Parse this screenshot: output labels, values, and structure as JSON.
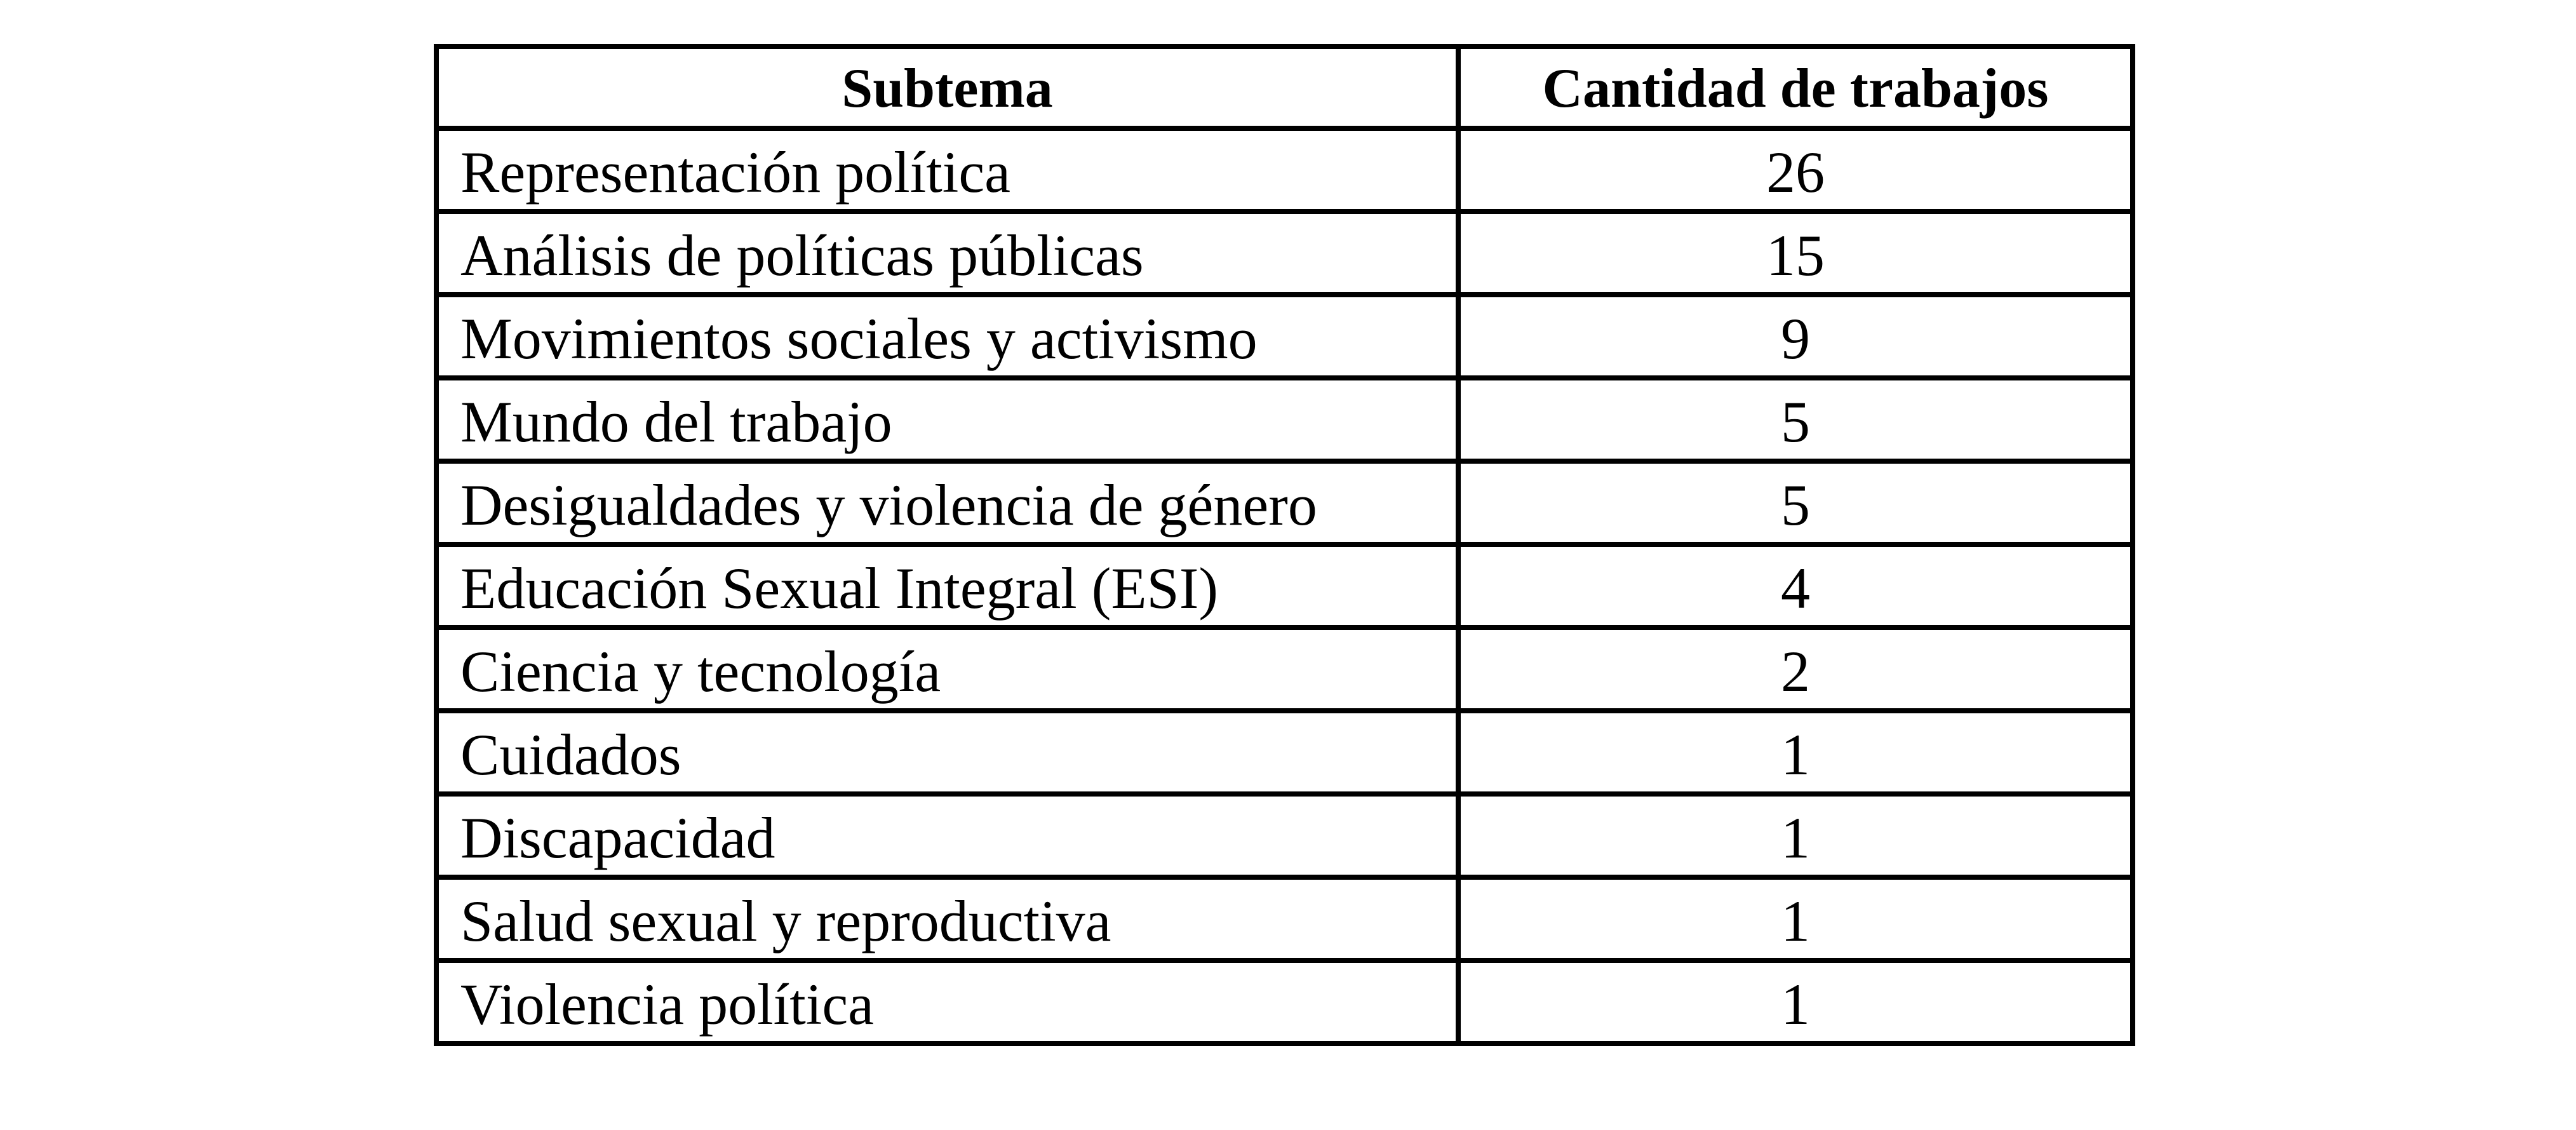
{
  "table": {
    "headers": {
      "subtema": "Subtema",
      "cantidad": "Cantidad de trabajos"
    },
    "rows": [
      {
        "subtema": "Representación política",
        "cantidad": "26"
      },
      {
        "subtema": "Análisis de políticas públicas",
        "cantidad": "15"
      },
      {
        "subtema": "Movimientos sociales y activismo",
        "cantidad": "9"
      },
      {
        "subtema": "Mundo del trabajo",
        "cantidad": "5"
      },
      {
        "subtema": "Desigualdades y violencia de género",
        "cantidad": "5"
      },
      {
        "subtema": "Educación Sexual Integral (ESI)",
        "cantidad": "4"
      },
      {
        "subtema": "Ciencia y tecnología",
        "cantidad": "2"
      },
      {
        "subtema": "Cuidados",
        "cantidad": "1"
      },
      {
        "subtema": "Discapacidad",
        "cantidad": "1"
      },
      {
        "subtema": "Salud sexual y reproductiva",
        "cantidad": "1"
      },
      {
        "subtema": "Violencia política",
        "cantidad": "1"
      }
    ]
  },
  "chart_data": {
    "type": "table",
    "columns": [
      "Subtema",
      "Cantidad de trabajos"
    ],
    "categories": [
      "Representación política",
      "Análisis de políticas públicas",
      "Movimientos sociales y activismo",
      "Mundo del trabajo",
      "Desigualdades y violencia de género",
      "Educación Sexual Integral (ESI)",
      "Ciencia y tecnología",
      "Cuidados",
      "Discapacidad",
      "Salud sexual y reproductiva",
      "Violencia política"
    ],
    "values": [
      26,
      15,
      9,
      5,
      5,
      4,
      2,
      1,
      1,
      1,
      1
    ]
  }
}
